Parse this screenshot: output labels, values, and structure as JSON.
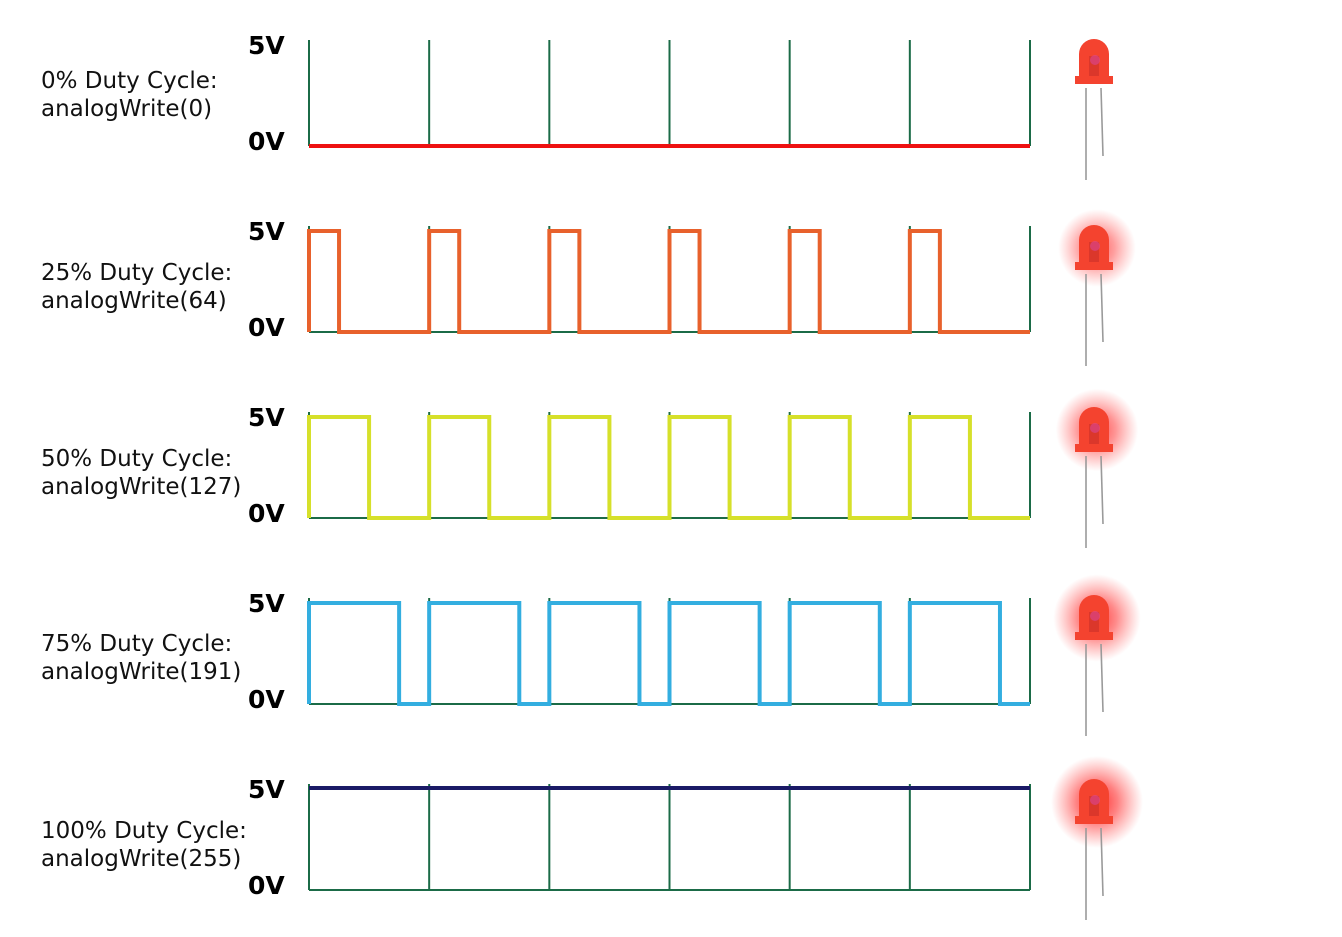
{
  "colors": {
    "grid": "#1b6b47",
    "led_body": "#f4432f",
    "led_lead": "#9a9a9a",
    "glow": "#ff2a2a"
  },
  "rows": [
    {
      "label_line1": "0% Duty Cycle:",
      "label_line2": "analogWrite(0)",
      "high_label": "5V",
      "low_label": "0V",
      "duty": 0.0,
      "color": "#ee1111",
      "brightness": 0.0
    },
    {
      "label_line1": "25% Duty Cycle:",
      "label_line2": "analogWrite(64)",
      "high_label": "5V",
      "low_label": "0V",
      "duty": 0.25,
      "color": "#e8612c",
      "brightness": 0.55
    },
    {
      "label_line1": "50% Duty Cycle:",
      "label_line2": "analogWrite(127)",
      "high_label": "5V",
      "low_label": "0V",
      "duty": 0.5,
      "color": "#d6e02a",
      "brightness": 0.7
    },
    {
      "label_line1": "75% Duty Cycle:",
      "label_line2": "analogWrite(191)",
      "high_label": "5V",
      "low_label": "0V",
      "duty": 0.75,
      "color": "#33aee0",
      "brightness": 0.85
    },
    {
      "label_line1": "100% Duty Cycle:",
      "label_line2": "analogWrite(255)",
      "high_label": "5V",
      "low_label": "0V",
      "duty": 1.0,
      "color": "#1a1a66",
      "brightness": 1.0
    }
  ]
}
